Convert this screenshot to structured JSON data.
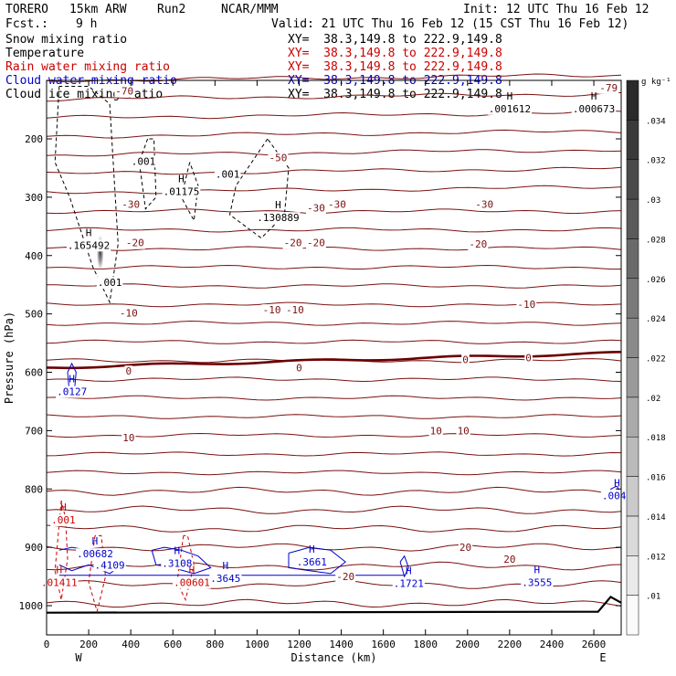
{
  "header": {
    "model": "TORERO",
    "resolution": "15km ARW",
    "run": "Run2",
    "org": "NCAR/MMM",
    "init": "Init: 12 UTC Thu 16 Feb 12",
    "fcst_label": "Fcst.:",
    "fcst_value": "9 h",
    "valid": "Valid: 21 UTC Thu 16 Feb 12 (15 CST Thu 16 Feb 12)"
  },
  "legend": {
    "items": [
      {
        "name": "Snow mixing ratio",
        "color": "#000000",
        "xy": "XY=  38.3,149.8 to 222.9,149.8",
        "xy_color": "#000000"
      },
      {
        "name": "Temperature",
        "color": "#000000",
        "xy": "XY=  38.3,149.8 to 222.9,149.8",
        "xy_color": "#cc0000"
      },
      {
        "name": "Rain water mixing ratio",
        "color": "#cc0000",
        "xy": "XY=  38.3,149.8 to 222.9,149.8",
        "xy_color": "#cc0000"
      },
      {
        "name": "Cloud water mixing ratio",
        "color": "#0000cc",
        "xy": "XY=  38.3,149.8 to 222.9,149.8",
        "xy_color": "#0000cc"
      },
      {
        "name": "Cloud ice mixing ratio",
        "color": "#000000",
        "xy": "XY=  38.3,149.8 to 222.9,149.8",
        "xy_color": "#000000"
      }
    ]
  },
  "chart_data": {
    "type": "contour-cross-section",
    "xlabel": "Distance (km)",
    "ylabel": "Pressure (hPa)",
    "xlim": [
      0,
      2730
    ],
    "ylim": [
      1050,
      100
    ],
    "x_ticks": [
      0,
      200,
      400,
      600,
      800,
      1000,
      1200,
      1400,
      1600,
      1800,
      2000,
      2200,
      2400,
      2600
    ],
    "x_tick_labels": [
      "0",
      "200",
      "400",
      "600",
      "800",
      "1000",
      "1200",
      "1400",
      "1600",
      "1800",
      "2000",
      "2200",
      "2400",
      "2600"
    ],
    "y_ticks": [
      200,
      300,
      400,
      500,
      600,
      700,
      800,
      900,
      1000
    ],
    "y_tick_labels": [
      "200",
      "300",
      "400",
      "500",
      "600",
      "700",
      "800",
      "900",
      "1000"
    ],
    "left_end_label": "W",
    "right_end_label": "E",
    "colorbar": {
      "units": "g kg⁻¹",
      "ticks": [
        ".01",
        ".012",
        ".014",
        ".016",
        ".018",
        ".02",
        ".022",
        ".024",
        ".026",
        ".028",
        ".03",
        ".032",
        ".034"
      ]
    },
    "temperature_isotherms_c": [
      -70,
      -60,
      -50,
      -40,
      -30,
      -20,
      -10,
      0,
      10,
      20
    ],
    "temperature_labels": [
      {
        "text": "-70",
        "x": 370,
        "p": 118
      },
      {
        "text": "-79",
        "x": 2670,
        "p": 112
      },
      {
        "text": "-50",
        "x": 1100,
        "p": 232
      },
      {
        "text": "-30",
        "x": 400,
        "p": 312
      },
      {
        "text": "-30",
        "x": 1280,
        "p": 318
      },
      {
        "text": "-30",
        "x": 1380,
        "p": 312
      },
      {
        "text": "-30",
        "x": 2080,
        "p": 312
      },
      {
        "text": "-20",
        "x": 420,
        "p": 378
      },
      {
        "text": "-20",
        "x": 1170,
        "p": 378
      },
      {
        "text": "-20",
        "x": 1280,
        "p": 378
      },
      {
        "text": "-20",
        "x": 2050,
        "p": 380
      },
      {
        "text": "-10",
        "x": 390,
        "p": 498
      },
      {
        "text": "-10",
        "x": 1070,
        "p": 493
      },
      {
        "text": "-10",
        "x": 1180,
        "p": 493
      },
      {
        "text": "-10",
        "x": 2280,
        "p": 483
      },
      {
        "text": "0",
        "x": 390,
        "p": 598
      },
      {
        "text": "0",
        "x": 1200,
        "p": 592
      },
      {
        "text": "0",
        "x": 1990,
        "p": 578
      },
      {
        "text": "0",
        "x": 2290,
        "p": 575
      },
      {
        "text": "10",
        "x": 390,
        "p": 712
      },
      {
        "text": "10",
        "x": 1850,
        "p": 700
      },
      {
        "text": "10",
        "x": 1980,
        "p": 700
      },
      {
        "text": "20",
        "x": 1990,
        "p": 900
      },
      {
        "text": "20",
        "x": 2200,
        "p": 920
      },
      {
        "text": "-20",
        "x": 1420,
        "p": 950
      }
    ],
    "snow_labels": [
      {
        "text": ".001",
        "x": 460,
        "p": 238
      },
      {
        "text": ".001",
        "x": 860,
        "p": 260
      },
      {
        "text": ".001",
        "x": 300,
        "p": 446
      }
    ],
    "ice_maxima": [
      {
        "mark": "H",
        "value": ".001612",
        "x": 2200,
        "p": 148
      },
      {
        "mark": "H",
        "value": ".000673",
        "x": 2600,
        "p": 148
      },
      {
        "mark": "H",
        "value": ".01175",
        "x": 640,
        "p": 290
      },
      {
        "mark": "H",
        "value": ".130889",
        "x": 1100,
        "p": 335
      },
      {
        "mark": "H",
        "value": ".165492",
        "x": 200,
        "p": 382
      }
    ],
    "cloud_water_maxima": [
      {
        "mark": "H",
        "value": ".0127",
        "x": 120,
        "p": 633
      },
      {
        "mark": "H",
        "value": ".0040",
        "x": 2710,
        "p": 811
      },
      {
        "mark": "H",
        "value": ".00682",
        "x": 230,
        "p": 911
      },
      {
        "mark": "H",
        "value": ".3108",
        "x": 620,
        "p": 927
      },
      {
        "mark": "H",
        "value": ".3645",
        "x": 850,
        "p": 953
      },
      {
        "mark": "H",
        "value": ".3661",
        "x": 1260,
        "p": 925
      },
      {
        "mark": "H",
        "value": ".1721",
        "x": 1720,
        "p": 962
      },
      {
        "mark": "H",
        "value": ".3555",
        "x": 2330,
        "p": 960
      },
      {
        "mark": "",
        "value": ".4109",
        "x": 300,
        "p": 930
      }
    ],
    "rain_labels": [
      {
        "mark": "H",
        "value": ".001",
        "x": 80,
        "p": 853
      },
      {
        "mark": "H",
        "value": ".01411",
        "x": 60,
        "p": 960
      },
      {
        "mark": "H",
        "value": ".00601",
        "x": 690,
        "p": 960
      }
    ],
    "terrain_pressure_hpa": 1012
  }
}
